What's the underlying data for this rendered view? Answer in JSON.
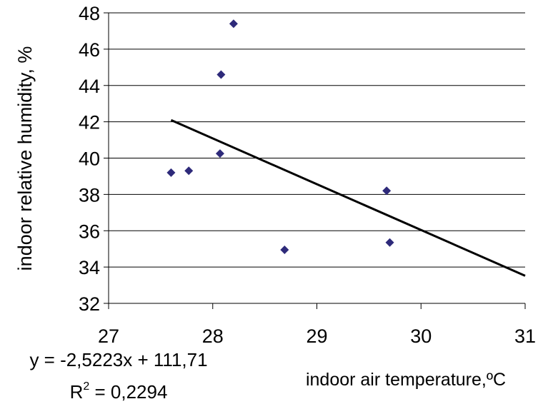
{
  "chart_data": {
    "type": "scatter",
    "xlabel": "indoor air temperature,ºC",
    "ylabel": "indoor relative humidity, %",
    "xlim": [
      27,
      31
    ],
    "ylim": [
      32,
      48
    ],
    "xticks": [
      27,
      28,
      29,
      30,
      31
    ],
    "yticks": [
      32,
      34,
      36,
      38,
      40,
      42,
      44,
      46,
      48
    ],
    "grid": true,
    "legend": "none",
    "marker": "diamond",
    "series": [
      {
        "points": [
          {
            "x": 27.6,
            "y": 39.2
          },
          {
            "x": 27.77,
            "y": 39.3
          },
          {
            "x": 28.07,
            "y": 40.25
          },
          {
            "x": 28.08,
            "y": 44.6
          },
          {
            "x": 28.2,
            "y": 47.4
          },
          {
            "x": 28.69,
            "y": 34.95
          },
          {
            "x": 29.67,
            "y": 38.2
          },
          {
            "x": 29.7,
            "y": 35.35
          }
        ]
      }
    ],
    "trendline": {
      "type": "linear",
      "slope": -2.5223,
      "intercept": 111.71,
      "x_range": [
        27.6,
        31
      ],
      "equation_label": "y = -2,5223x + 111,71",
      "r2_prefix": "R",
      "r2_exponent": "2",
      "r2_value": " = 0,2294"
    },
    "colors": {
      "marker": "#2e2a7a",
      "trendline": "#000000",
      "grid": "#000000",
      "axis": "#000000"
    }
  }
}
